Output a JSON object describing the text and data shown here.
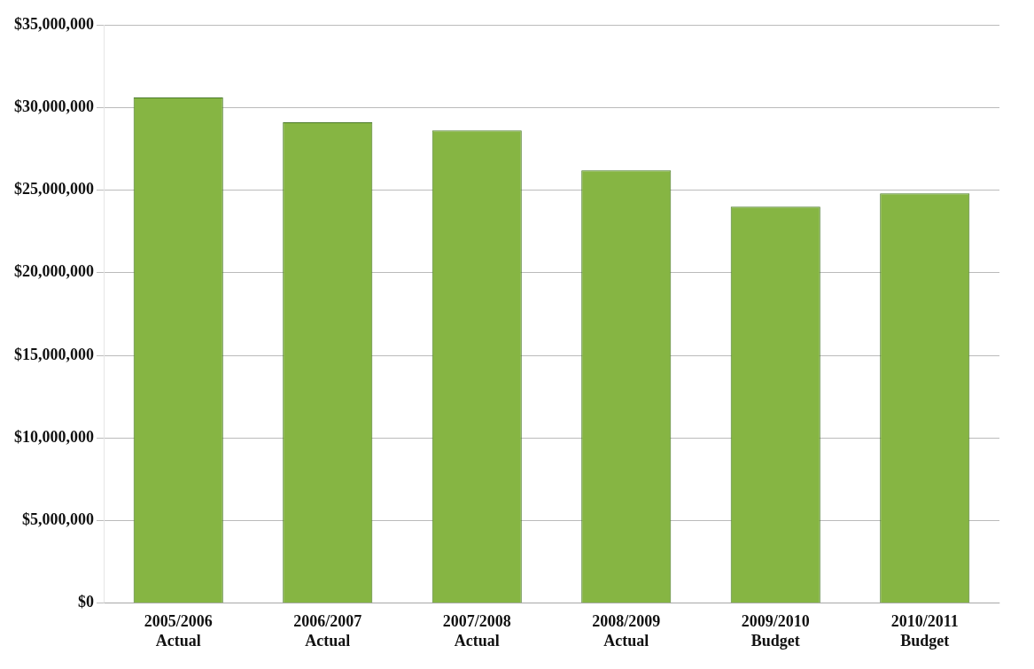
{
  "chart_data": {
    "type": "bar",
    "categories": [
      "2005/2006\nActual",
      "2006/2007\nActual",
      "2007/2008\nActual",
      "2008/2009\nActual",
      "2009/2010\nBudget",
      "2010/2011\nBudget"
    ],
    "values": [
      30600000,
      29100000,
      28600000,
      26200000,
      24000000,
      24800000
    ],
    "color": "#86b543",
    "ylim": [
      0,
      35000000
    ],
    "yticks": [
      {
        "value": 0,
        "label": "$0"
      },
      {
        "value": 5000000,
        "label": "$5,000,000"
      },
      {
        "value": 10000000,
        "label": "$10,000,000"
      },
      {
        "value": 15000000,
        "label": "$15,000,000"
      },
      {
        "value": 20000000,
        "label": "$20,000,000"
      },
      {
        "value": 25000000,
        "label": "$25,000,000"
      },
      {
        "value": 30000000,
        "label": "$30,000,000"
      },
      {
        "value": 35000000,
        "label": "$35,000,000"
      }
    ],
    "grid": "y"
  }
}
